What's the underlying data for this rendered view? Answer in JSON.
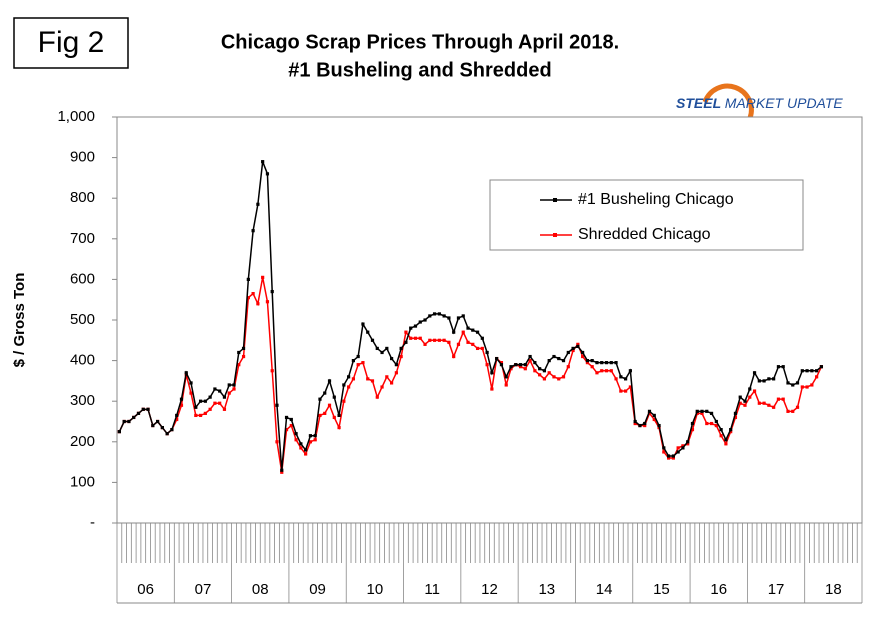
{
  "chart_data": {
    "type": "line",
    "badge": "Fig 2",
    "title": "Chicago Scrap Prices Through April 2018.",
    "subtitle": "#1 Busheling and Shredded",
    "logo": {
      "brand": "STEEL",
      "rest": "MARKET UPDATE"
    },
    "y_label": "$ / Gross Ton",
    "year_labels": [
      "06",
      "07",
      "08",
      "09",
      "10",
      "11",
      "12",
      "13",
      "14",
      "15",
      "16",
      "17",
      "18"
    ],
    "ylim": [
      0,
      1000
    ],
    "yticks": [
      {
        "value": 0,
        "label": "-"
      },
      100,
      200,
      300,
      400,
      500,
      600,
      700,
      800,
      900,
      {
        "value": 1000,
        "label": "1,000"
      }
    ],
    "legend": "upper right",
    "series": [
      {
        "name": "#1 Busheling Chicago",
        "color": "#000000",
        "values": [
          225,
          250,
          250,
          260,
          270,
          280,
          280,
          240,
          250,
          235,
          220,
          230,
          265,
          305,
          370,
          345,
          285,
          300,
          300,
          310,
          330,
          325,
          310,
          340,
          340,
          420,
          430,
          600,
          720,
          785,
          890,
          860,
          570,
          290,
          130,
          260,
          255,
          220,
          195,
          180,
          215,
          215,
          305,
          320,
          350,
          310,
          265,
          340,
          360,
          400,
          410,
          490,
          470,
          450,
          430,
          420,
          430,
          405,
          390,
          430,
          445,
          480,
          485,
          495,
          500,
          510,
          515,
          515,
          510,
          505,
          470,
          505,
          510,
          480,
          475,
          470,
          455,
          420,
          370,
          405,
          390,
          360,
          385,
          390,
          390,
          390,
          410,
          395,
          380,
          375,
          400,
          410,
          405,
          400,
          420,
          430,
          435,
          420,
          400,
          400,
          395,
          395,
          395,
          395,
          395,
          360,
          355,
          375,
          250,
          240,
          245,
          275,
          265,
          240,
          185,
          165,
          165,
          175,
          185,
          200,
          245,
          275,
          275,
          275,
          270,
          250,
          230,
          205,
          230,
          270,
          310,
          300,
          330,
          370,
          350,
          350,
          355,
          355,
          385,
          385,
          345,
          340,
          345,
          375,
          375,
          375,
          375,
          385
        ]
      },
      {
        "name": "Shredded Chicago",
        "color": "#ff0000",
        "values": [
          225,
          250,
          250,
          260,
          270,
          280,
          280,
          240,
          250,
          235,
          220,
          230,
          255,
          290,
          365,
          320,
          265,
          265,
          270,
          280,
          295,
          295,
          280,
          320,
          330,
          390,
          410,
          555,
          565,
          540,
          605,
          545,
          375,
          200,
          125,
          230,
          240,
          205,
          185,
          170,
          200,
          205,
          265,
          270,
          290,
          260,
          235,
          300,
          335,
          355,
          390,
          395,
          355,
          350,
          310,
          335,
          360,
          345,
          370,
          410,
          470,
          455,
          455,
          455,
          440,
          450,
          450,
          450,
          450,
          445,
          410,
          440,
          470,
          445,
          440,
          430,
          430,
          390,
          330,
          405,
          395,
          340,
          380,
          390,
          385,
          380,
          400,
          375,
          365,
          355,
          370,
          360,
          355,
          360,
          385,
          425,
          440,
          410,
          395,
          385,
          370,
          375,
          375,
          375,
          355,
          325,
          325,
          335,
          245,
          240,
          240,
          270,
          255,
          235,
          175,
          160,
          160,
          185,
          190,
          195,
          230,
          270,
          270,
          245,
          245,
          240,
          215,
          195,
          225,
          260,
          295,
          290,
          310,
          325,
          295,
          295,
          290,
          285,
          305,
          305,
          275,
          275,
          285,
          335,
          335,
          340,
          360,
          385
        ]
      }
    ]
  }
}
